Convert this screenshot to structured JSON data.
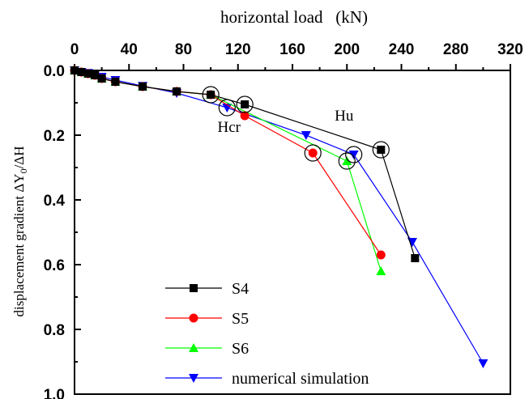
{
  "chart_data": {
    "type": "line",
    "xlabel": "horizontal load   (kN)",
    "ylabel": {
      "prefix": "displacement gradient ΔY",
      "subscript": "0",
      "suffix": "/ΔH"
    },
    "xlim": [
      0,
      320
    ],
    "ylim": [
      0.0,
      1.0
    ],
    "y_inverted": true,
    "x_axis_position": "top",
    "x_ticks": [
      "0",
      "40",
      "80",
      "120",
      "160",
      "200",
      "240",
      "280",
      "320"
    ],
    "y_ticks": [
      "0.0",
      "0.2",
      "0.4",
      "0.6",
      "0.8",
      "1.0"
    ],
    "grid": false,
    "legend_position": "bottom-left",
    "series": [
      {
        "name": "S4",
        "color": "#000000",
        "marker": "square",
        "points": [
          [
            0,
            0.0
          ],
          [
            5,
            0.005
          ],
          [
            10,
            0.01
          ],
          [
            15,
            0.015
          ],
          [
            20,
            0.025
          ],
          [
            30,
            0.035
          ],
          [
            50,
            0.05
          ],
          [
            75,
            0.065
          ],
          [
            100,
            0.075
          ],
          [
            125,
            0.105
          ],
          [
            225,
            0.245
          ],
          [
            250,
            0.58
          ]
        ]
      },
      {
        "name": "S5",
        "color": "#ff0000",
        "marker": "circle",
        "points": [
          [
            0,
            0.0
          ],
          [
            5,
            0.005
          ],
          [
            10,
            0.01
          ],
          [
            15,
            0.015
          ],
          [
            20,
            0.025
          ],
          [
            30,
            0.035
          ],
          [
            50,
            0.05
          ],
          [
            75,
            0.065
          ],
          [
            100,
            0.075
          ],
          [
            125,
            0.14
          ],
          [
            175,
            0.255
          ],
          [
            225,
            0.57
          ]
        ]
      },
      {
        "name": "S6",
        "color": "#00ff00",
        "marker": "triangle-up",
        "points": [
          [
            0,
            0.0
          ],
          [
            5,
            0.005
          ],
          [
            10,
            0.01
          ],
          [
            15,
            0.015
          ],
          [
            20,
            0.025
          ],
          [
            30,
            0.035
          ],
          [
            50,
            0.05
          ],
          [
            75,
            0.065
          ],
          [
            100,
            0.075
          ],
          [
            200,
            0.28
          ],
          [
            225,
            0.62
          ]
        ]
      },
      {
        "name": "numerical simulation",
        "color": "#0000ff",
        "marker": "triangle-down",
        "points": [
          [
            0,
            0.0
          ],
          [
            5,
            0.005
          ],
          [
            10,
            0.008
          ],
          [
            15,
            0.012
          ],
          [
            20,
            0.02
          ],
          [
            30,
            0.03
          ],
          [
            50,
            0.048
          ],
          [
            75,
            0.07
          ],
          [
            112,
            0.115
          ],
          [
            170,
            0.2
          ],
          [
            205,
            0.26
          ],
          [
            248,
            0.53
          ],
          [
            300,
            0.905
          ]
        ]
      }
    ],
    "circled_points": [
      [
        100,
        0.075
      ],
      [
        112,
        0.115
      ],
      [
        125,
        0.105
      ],
      [
        175,
        0.255
      ],
      [
        200,
        0.28
      ],
      [
        205,
        0.26
      ],
      [
        225,
        0.245
      ]
    ],
    "annotations": [
      {
        "text": "Hcr",
        "x": 105,
        "y": 0.19
      },
      {
        "text": "Hu",
        "x": 191,
        "y": 0.155
      }
    ]
  }
}
